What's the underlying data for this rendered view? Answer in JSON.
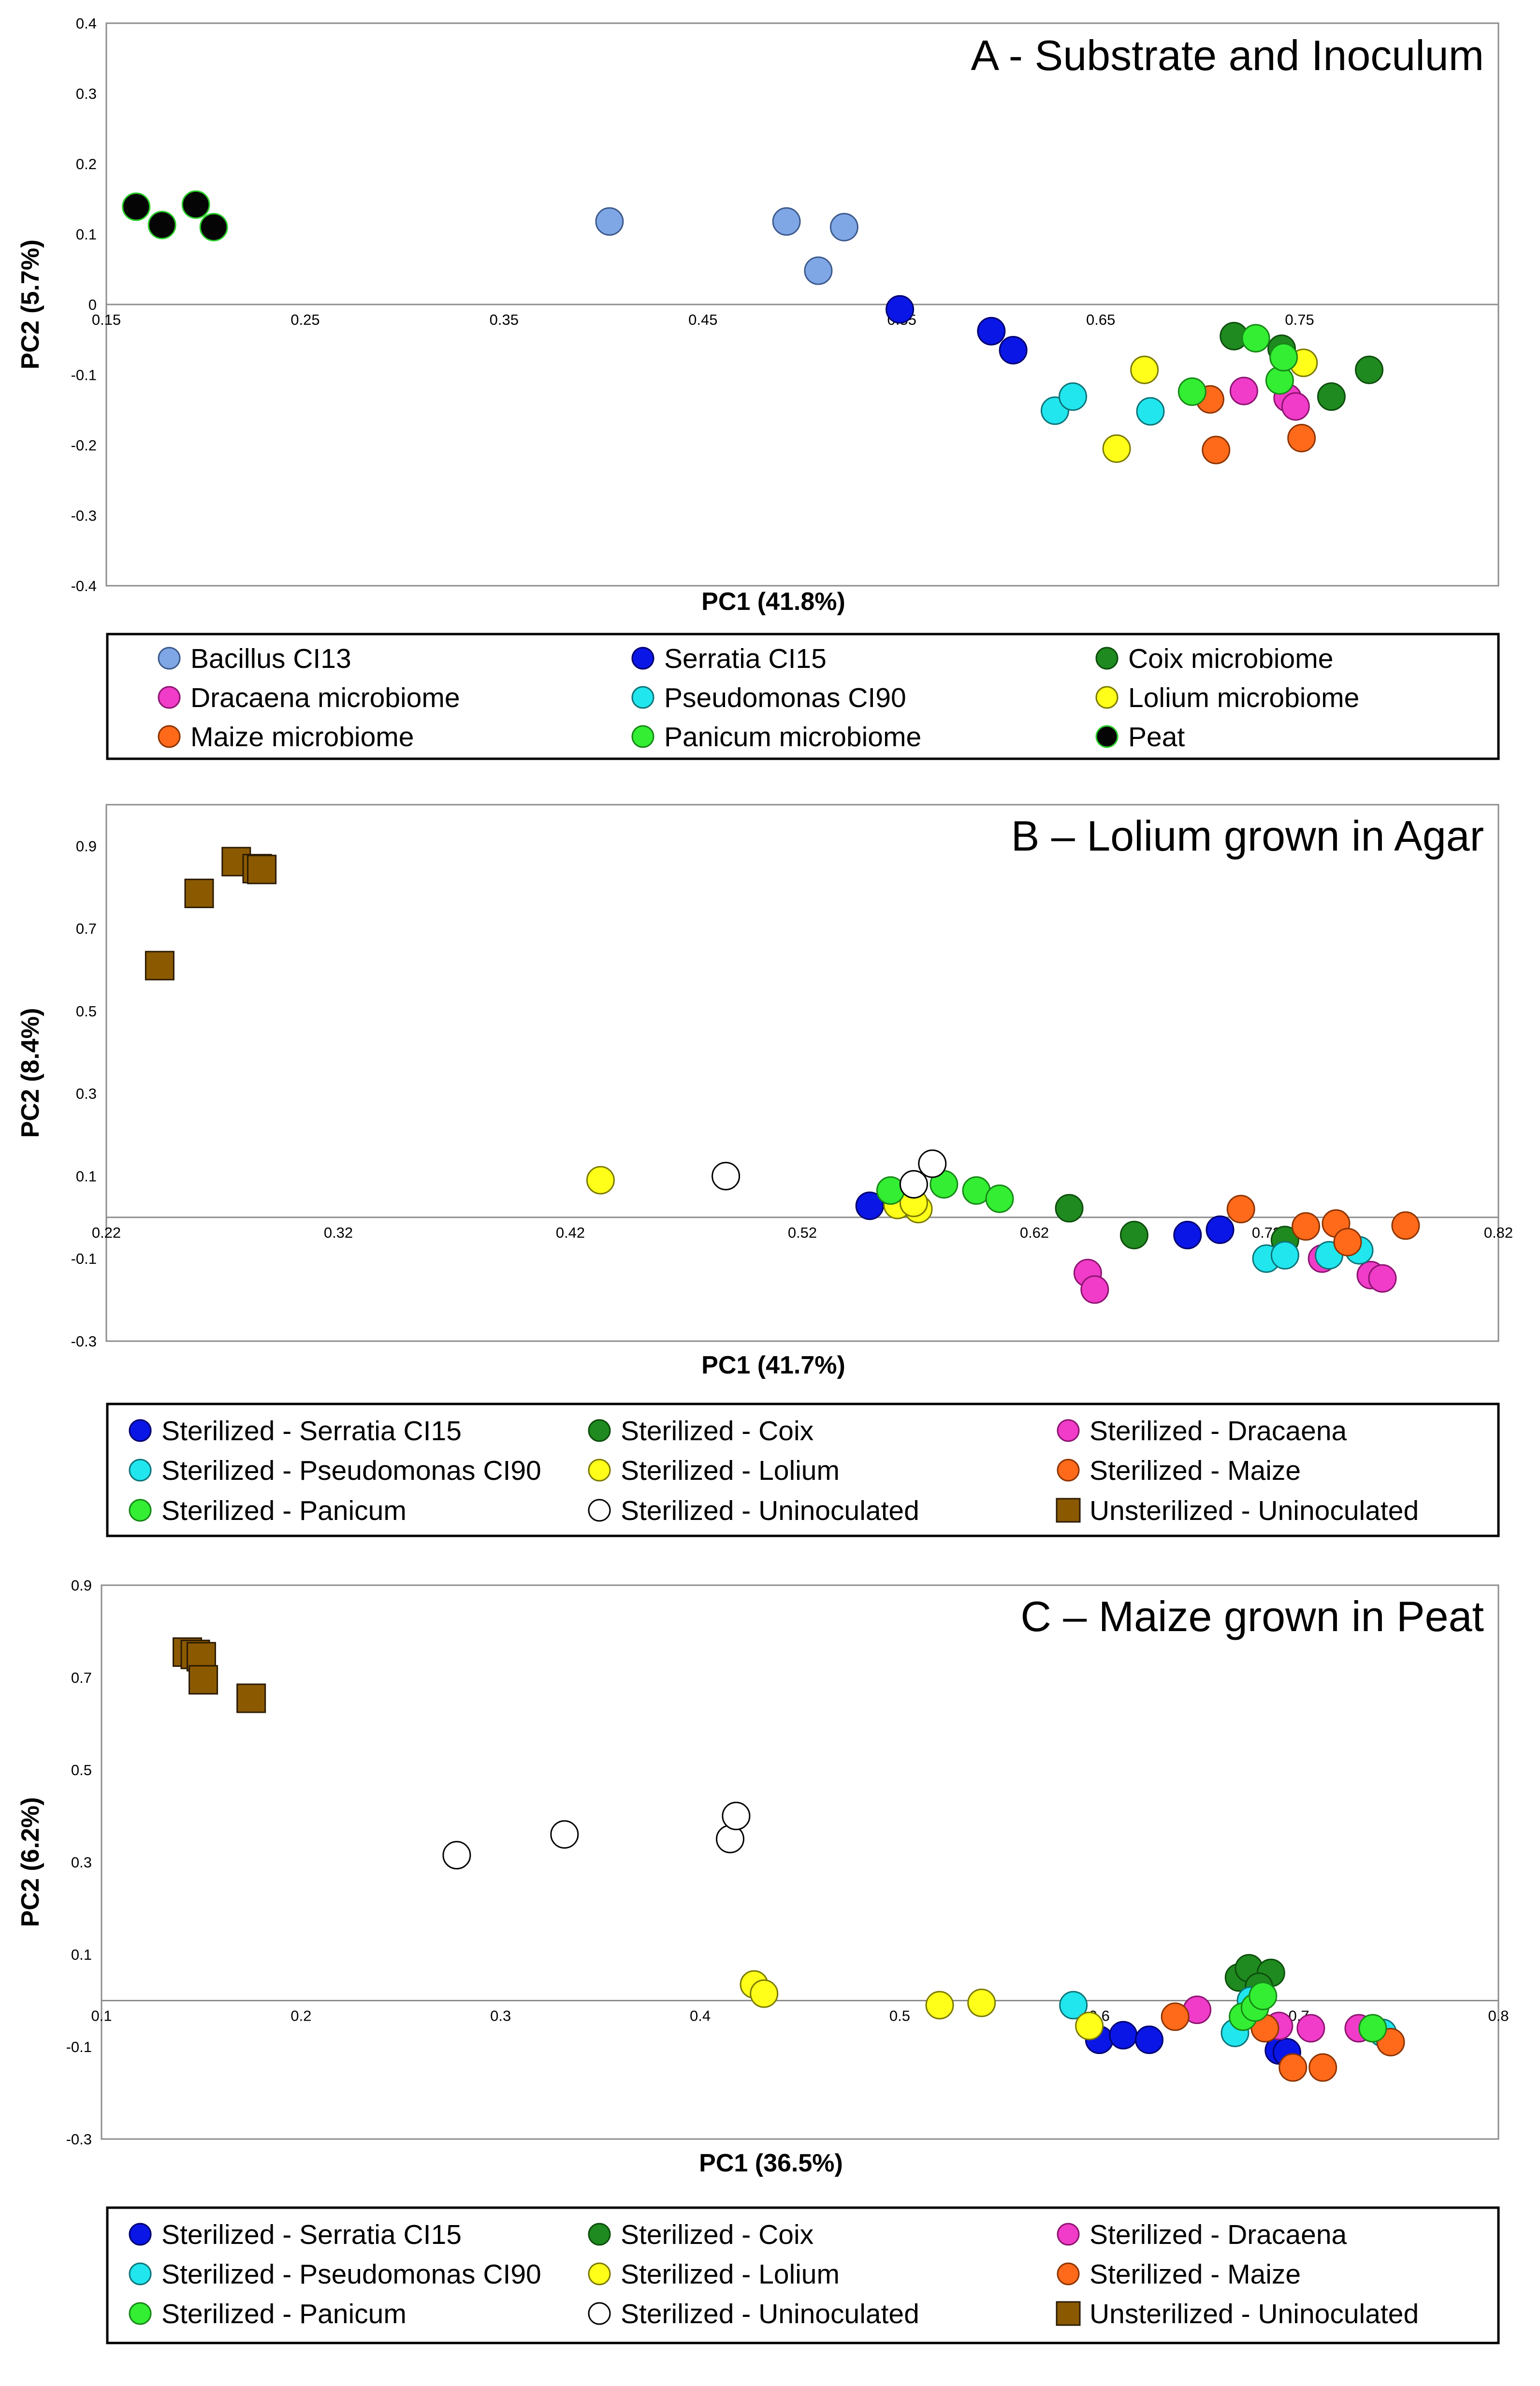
{
  "charts": [
    {
      "type": "scatter",
      "title": "A - Substrate and Inoculum",
      "xlabel": "PC1 (41.8%)",
      "ylabel": "PC2 (5.7%)",
      "xlim": [
        0.15,
        0.85
      ],
      "ylim": [
        -0.4,
        0.4
      ],
      "xticks": [
        "0.15",
        "0.25",
        "0.35",
        "0.45",
        "0.55",
        "0.65",
        "0.75"
      ],
      "xtick_values": [
        0.15,
        0.25,
        0.35,
        0.45,
        0.55,
        0.65,
        0.75
      ],
      "yticks": [
        "0.4",
        "0.3",
        "0.2",
        "0.1",
        "0",
        "-0.1",
        "-0.2",
        "-0.3",
        "-0.4"
      ],
      "ytick_values": [
        0.4,
        0.3,
        0.2,
        0.1,
        0,
        -0.1,
        -0.2,
        -0.3,
        -0.4
      ],
      "grid": false,
      "series": [
        {
          "name": "Bacillus CI13",
          "color": "#7fa7e6",
          "edge": "#3d5a8c",
          "marker": "circle",
          "points": [
            [
              0.403,
              0.118
            ],
            [
              0.492,
              0.118
            ],
            [
              0.508,
              0.048
            ],
            [
              0.521,
              0.11
            ]
          ]
        },
        {
          "name": "Serratia CI15",
          "color": "#0a16e6",
          "edge": "#00006e",
          "marker": "circle",
          "points": [
            [
              0.549,
              -0.007
            ],
            [
              0.595,
              -0.038
            ],
            [
              0.606,
              -0.065
            ]
          ]
        },
        {
          "name": "Coix microbiome",
          "color": "#1f8a1f",
          "edge": "#0d4d0d",
          "marker": "circle",
          "points": [
            [
              0.717,
              -0.045
            ],
            [
              0.741,
              -0.063
            ],
            [
              0.766,
              -0.131
            ],
            [
              0.785,
              -0.093
            ]
          ]
        },
        {
          "name": "Dracaena microbiome",
          "color": "#f03cc8",
          "edge": "#8c1470",
          "marker": "circle",
          "points": [
            [
              0.722,
              -0.123
            ],
            [
              0.744,
              -0.133
            ],
            [
              0.748,
              -0.145
            ]
          ]
        },
        {
          "name": "Pseudomonas CI90",
          "color": "#21e6ee",
          "edge": "#0e7378",
          "marker": "circle",
          "points": [
            [
              0.627,
              -0.151
            ],
            [
              0.636,
              -0.131
            ],
            [
              0.675,
              -0.152
            ]
          ]
        },
        {
          "name": "Lolium microbiome",
          "color": "#ffff1a",
          "edge": "#7a7a00",
          "marker": "circle",
          "points": [
            [
              0.658,
              -0.205
            ],
            [
              0.672,
              -0.093
            ],
            [
              0.752,
              -0.083
            ]
          ]
        },
        {
          "name": "Maize microbiome",
          "color": "#ff6a1a",
          "edge": "#8c3300",
          "marker": "circle",
          "points": [
            [
              0.705,
              -0.135
            ],
            [
              0.708,
              -0.207
            ],
            [
              0.751,
              -0.19
            ]
          ]
        },
        {
          "name": "Panicum microbiome",
          "color": "#33ee33",
          "edge": "#178717",
          "marker": "circle",
          "points": [
            [
              0.696,
              -0.124
            ],
            [
              0.728,
              -0.048
            ],
            [
              0.74,
              -0.108
            ],
            [
              0.742,
              -0.075
            ]
          ]
        },
        {
          "name": "Peat",
          "color": "#050505",
          "edge": "#2ad02a",
          "marker": "circle",
          "points": [
            [
              0.165,
              0.139
            ],
            [
              0.178,
              0.113
            ],
            [
              0.195,
              0.142
            ],
            [
              0.204,
              0.11
            ]
          ]
        }
      ],
      "legend_columns": 3
    },
    {
      "type": "scatter",
      "title": "B – Lolium grown in Agar",
      "xlabel": "PC1 (41.7%)",
      "ylabel": "PC2 (8.4%)",
      "xlim": [
        0.22,
        0.82
      ],
      "ylim": [
        -0.3,
        1.0
      ],
      "xticks": [
        "0.22",
        "0.32",
        "0.42",
        "0.52",
        "0.62",
        "0.72",
        "0.82"
      ],
      "xtick_values": [
        0.22,
        0.32,
        0.42,
        0.52,
        0.62,
        0.72,
        0.82
      ],
      "yticks": [
        "0.9",
        "0.7",
        "0.5",
        "0.3",
        "0.1",
        "-0.1",
        "-0.3"
      ],
      "ytick_values": [
        0.9,
        0.7,
        0.5,
        0.3,
        0.1,
        -0.1,
        -0.3
      ],
      "grid": false,
      "series": [
        {
          "name": "Sterilized - Serratia CI15",
          "color": "#0a16e6",
          "edge": "#00006e",
          "marker": "circle",
          "points": [
            [
              0.549,
              0.028
            ],
            [
              0.686,
              -0.043
            ],
            [
              0.7,
              -0.03
            ]
          ]
        },
        {
          "name": "Sterilized - Coix",
          "color": "#1f8a1f",
          "edge": "#0d4d0d",
          "marker": "circle",
          "points": [
            [
              0.635,
              0.022
            ],
            [
              0.663,
              -0.043
            ],
            [
              0.728,
              -0.055
            ]
          ]
        },
        {
          "name": "Sterilized - Dracaena",
          "color": "#f03cc8",
          "edge": "#8c1470",
          "marker": "circle",
          "points": [
            [
              0.643,
              -0.135
            ],
            [
              0.646,
              -0.175
            ],
            [
              0.744,
              -0.1
            ],
            [
              0.765,
              -0.14
            ],
            [
              0.77,
              -0.148
            ]
          ]
        },
        {
          "name": "Sterilized - Pseudomonas CI90",
          "color": "#21e6ee",
          "edge": "#0e7378",
          "marker": "circle",
          "points": [
            [
              0.72,
              -0.1
            ],
            [
              0.728,
              -0.092
            ],
            [
              0.747,
              -0.092
            ],
            [
              0.76,
              -0.08
            ]
          ]
        },
        {
          "name": "Sterilized - Lolium",
          "color": "#ffff1a",
          "edge": "#7a7a00",
          "marker": "circle",
          "points": [
            [
              0.433,
              0.09
            ],
            [
              0.561,
              0.03
            ],
            [
              0.57,
              0.02
            ],
            [
              0.568,
              0.035
            ]
          ]
        },
        {
          "name": "Sterilized - Maize",
          "color": "#ff6a1a",
          "edge": "#8c3300",
          "marker": "circle",
          "points": [
            [
              0.709,
              0.02
            ],
            [
              0.737,
              -0.022
            ],
            [
              0.75,
              -0.015
            ],
            [
              0.755,
              -0.06
            ],
            [
              0.78,
              -0.02
            ]
          ]
        },
        {
          "name": "Sterilized - Panicum",
          "color": "#33ee33",
          "edge": "#178717",
          "marker": "circle",
          "points": [
            [
              0.558,
              0.065
            ],
            [
              0.581,
              0.08
            ],
            [
              0.595,
              0.065
            ],
            [
              0.605,
              0.045
            ]
          ]
        },
        {
          "name": "Sterilized - Uninoculated",
          "color": "#ffffff",
          "edge": "#000000",
          "marker": "circle",
          "points": [
            [
              0.487,
              0.1
            ],
            [
              0.568,
              0.08
            ],
            [
              0.576,
              0.13
            ]
          ]
        },
        {
          "name": "Unsterilized - Uninoculated",
          "color": "#8b5a00",
          "edge": "#2a1a00",
          "marker": "square",
          "points": [
            [
              0.243,
              0.61
            ],
            [
              0.26,
              0.785
            ],
            [
              0.276,
              0.862
            ],
            [
              0.285,
              0.845
            ],
            [
              0.287,
              0.843
            ]
          ]
        }
      ],
      "legend_columns": 3
    },
    {
      "type": "scatter",
      "title": "C – Maize grown in Peat",
      "xlabel": "PC1 (36.5%)",
      "ylabel": "PC2 (6.2%)",
      "xlim": [
        0.1,
        0.8
      ],
      "ylim": [
        -0.3,
        0.9
      ],
      "xticks": [
        "0.1",
        "0.2",
        "0.3",
        "0.4",
        "0.5",
        "0.6",
        "0.7",
        "0.8"
      ],
      "xtick_values": [
        0.1,
        0.2,
        0.3,
        0.4,
        0.5,
        0.6,
        0.7,
        0.8
      ],
      "yticks": [
        "0.9",
        "0.7",
        "0.5",
        "0.3",
        "0.1",
        "-0.1",
        "-0.3"
      ],
      "ytick_values": [
        0.9,
        0.7,
        0.5,
        0.3,
        0.1,
        -0.1,
        -0.3
      ],
      "grid": false,
      "series": [
        {
          "name": "Sterilized - Serratia CI15",
          "color": "#0a16e6",
          "edge": "#00006e",
          "marker": "circle",
          "points": [
            [
              0.6,
              -0.085
            ],
            [
              0.612,
              -0.075
            ],
            [
              0.625,
              -0.085
            ],
            [
              0.69,
              -0.108
            ],
            [
              0.694,
              -0.112
            ]
          ]
        },
        {
          "name": "Sterilized - Coix",
          "color": "#1f8a1f",
          "edge": "#0d4d0d",
          "marker": "circle",
          "points": [
            [
              0.67,
              0.05
            ],
            [
              0.675,
              0.07
            ],
            [
              0.686,
              0.06
            ],
            [
              0.68,
              0.03
            ]
          ]
        },
        {
          "name": "Sterilized - Dracaena",
          "color": "#f03cc8",
          "edge": "#8c1470",
          "marker": "circle",
          "points": [
            [
              0.649,
              -0.02
            ],
            [
              0.69,
              -0.055
            ],
            [
              0.706,
              -0.06
            ],
            [
              0.73,
              -0.06
            ]
          ]
        },
        {
          "name": "Sterilized - Pseudomonas CI90",
          "color": "#21e6ee",
          "edge": "#0e7378",
          "marker": "circle",
          "points": [
            [
              0.587,
              -0.01
            ],
            [
              0.668,
              -0.07
            ],
            [
              0.676,
              0.0
            ],
            [
              0.742,
              -0.07
            ]
          ]
        },
        {
          "name": "Sterilized - Lolium",
          "color": "#ffff1a",
          "edge": "#7a7a00",
          "marker": "circle",
          "points": [
            [
              0.427,
              0.035
            ],
            [
              0.432,
              0.015
            ],
            [
              0.52,
              -0.01
            ],
            [
              0.541,
              -0.005
            ],
            [
              0.595,
              -0.055
            ]
          ]
        },
        {
          "name": "Sterilized - Maize",
          "color": "#ff6a1a",
          "edge": "#8c3300",
          "marker": "circle",
          "points": [
            [
              0.638,
              -0.035
            ],
            [
              0.683,
              -0.06
            ],
            [
              0.697,
              -0.145
            ],
            [
              0.712,
              -0.145
            ],
            [
              0.746,
              -0.09
            ]
          ]
        },
        {
          "name": "Sterilized - Panicum",
          "color": "#33ee33",
          "edge": "#178717",
          "marker": "circle",
          "points": [
            [
              0.672,
              -0.035
            ],
            [
              0.678,
              -0.015
            ],
            [
              0.682,
              0.01
            ],
            [
              0.737,
              -0.06
            ]
          ]
        },
        {
          "name": "Sterilized - Uninoculated",
          "color": "#ffffff",
          "edge": "#000000",
          "marker": "circle",
          "points": [
            [
              0.278,
              0.315
            ],
            [
              0.332,
              0.36
            ],
            [
              0.415,
              0.35
            ],
            [
              0.418,
              0.4
            ]
          ]
        },
        {
          "name": "Unsterilized - Uninoculated",
          "color": "#8b5a00",
          "edge": "#2a1a00",
          "marker": "square",
          "points": [
            [
              0.143,
              0.755
            ],
            [
              0.147,
              0.75
            ],
            [
              0.15,
              0.745
            ],
            [
              0.151,
              0.695
            ],
            [
              0.175,
              0.655
            ]
          ]
        }
      ],
      "legend_columns": 3
    }
  ]
}
